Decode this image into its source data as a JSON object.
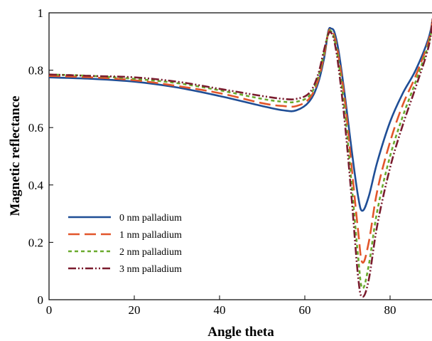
{
  "chart_data": {
    "type": "line",
    "title": "",
    "xlabel": "Angle theta",
    "ylabel": "Magnetic reflectance",
    "xlim": [
      0,
      90
    ],
    "ylim": [
      0,
      1
    ],
    "x_ticks": [
      "0",
      "20",
      "40",
      "60",
      "80"
    ],
    "y_ticks": [
      "0",
      "0.2",
      "0.4",
      "0.6",
      "0.8",
      "1"
    ],
    "grid": false,
    "legend_position": "bottom-left",
    "series": [
      {
        "name": "0 nm palladium",
        "color": "#1f4e96",
        "dash": "solid",
        "x": [
          0,
          10,
          20,
          30,
          40,
          50,
          55,
          58,
          61,
          63,
          64.5,
          65.5,
          66.2,
          67,
          68,
          69.5,
          71,
          72.5,
          73.5,
          75,
          77,
          80,
          83,
          86,
          89,
          90
        ],
        "y": [
          0.775,
          0.77,
          0.76,
          0.74,
          0.71,
          0.675,
          0.66,
          0.66,
          0.69,
          0.75,
          0.84,
          0.935,
          0.945,
          0.93,
          0.86,
          0.7,
          0.52,
          0.36,
          0.31,
          0.36,
          0.48,
          0.62,
          0.72,
          0.8,
          0.91,
          0.98
        ]
      },
      {
        "name": "1 nm palladium",
        "color": "#e2562b",
        "dash": "long-dash",
        "x": [
          0,
          10,
          20,
          30,
          40,
          50,
          55,
          58,
          61,
          63,
          64.5,
          65.5,
          66.2,
          67,
          68,
          69.5,
          71,
          72.5,
          73.5,
          75,
          77,
          80,
          83,
          86,
          89,
          90
        ],
        "y": [
          0.78,
          0.775,
          0.765,
          0.745,
          0.72,
          0.685,
          0.675,
          0.675,
          0.7,
          0.76,
          0.85,
          0.93,
          0.94,
          0.915,
          0.84,
          0.68,
          0.46,
          0.24,
          0.13,
          0.2,
          0.38,
          0.55,
          0.68,
          0.78,
          0.9,
          0.98
        ]
      },
      {
        "name": "2 nm palladium",
        "color": "#6aaa2e",
        "dash": "short-dash",
        "x": [
          0,
          10,
          20,
          30,
          40,
          50,
          55,
          58,
          61,
          63,
          64.5,
          65.5,
          66.2,
          67,
          68,
          69.5,
          71,
          72.5,
          73.5,
          75,
          77,
          80,
          83,
          86,
          89,
          90
        ],
        "y": [
          0.785,
          0.78,
          0.77,
          0.755,
          0.73,
          0.7,
          0.69,
          0.69,
          0.71,
          0.77,
          0.86,
          0.93,
          0.935,
          0.905,
          0.82,
          0.64,
          0.4,
          0.15,
          0.04,
          0.12,
          0.31,
          0.5,
          0.64,
          0.76,
          0.89,
          0.97
        ]
      },
      {
        "name": "3 nm palladium",
        "color": "#7a1c2e",
        "dash": "dash-dot-dot",
        "x": [
          0,
          10,
          20,
          30,
          40,
          50,
          55,
          58,
          61,
          63,
          64.5,
          65.5,
          66.2,
          67,
          68,
          69.5,
          71,
          72.5,
          73.5,
          75,
          77,
          80,
          83,
          86,
          89,
          90
        ],
        "y": [
          0.785,
          0.78,
          0.775,
          0.76,
          0.735,
          0.71,
          0.7,
          0.7,
          0.72,
          0.78,
          0.87,
          0.925,
          0.93,
          0.895,
          0.8,
          0.6,
          0.35,
          0.08,
          0.01,
          0.07,
          0.26,
          0.46,
          0.61,
          0.74,
          0.88,
          0.98
        ]
      }
    ]
  }
}
